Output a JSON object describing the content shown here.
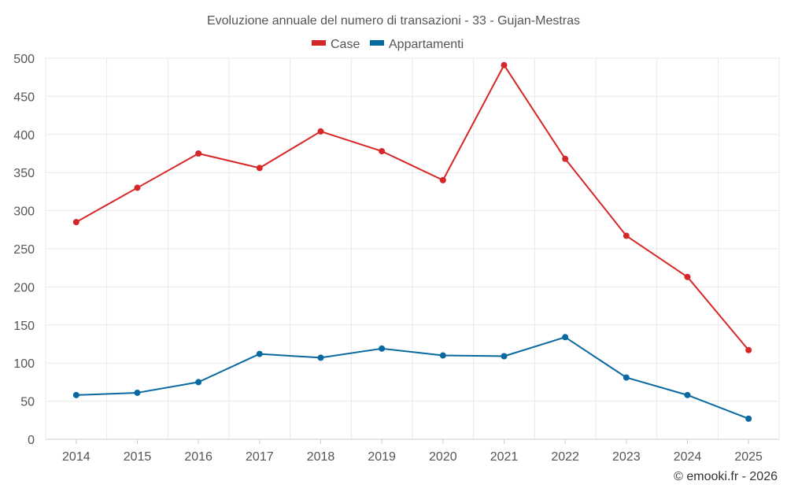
{
  "chart_data": {
    "type": "line",
    "title": "Evoluzione annuale del numero di transazioni - 33 - Gujan-Mestras",
    "categories": [
      "2014",
      "2015",
      "2016",
      "2017",
      "2018",
      "2019",
      "2020",
      "2021",
      "2022",
      "2023",
      "2024",
      "2025"
    ],
    "series": [
      {
        "name": "Case",
        "color": "#d62728",
        "values": [
          285,
          330,
          375,
          356,
          404,
          378,
          340,
          491,
          368,
          267,
          213,
          117
        ]
      },
      {
        "name": "Appartamenti",
        "color": "#0868a0",
        "values": [
          58,
          61,
          75,
          112,
          107,
          119,
          110,
          109,
          134,
          81,
          58,
          27
        ]
      }
    ],
    "ylim": [
      0,
      500
    ],
    "yticks": [
      "0",
      "50",
      "100",
      "150",
      "200",
      "250",
      "300",
      "350",
      "400",
      "450",
      "500"
    ],
    "xlabel": "",
    "ylabel": "",
    "grid": true,
    "legend": "top-center"
  },
  "credit": "© emooki.fr - 2026"
}
